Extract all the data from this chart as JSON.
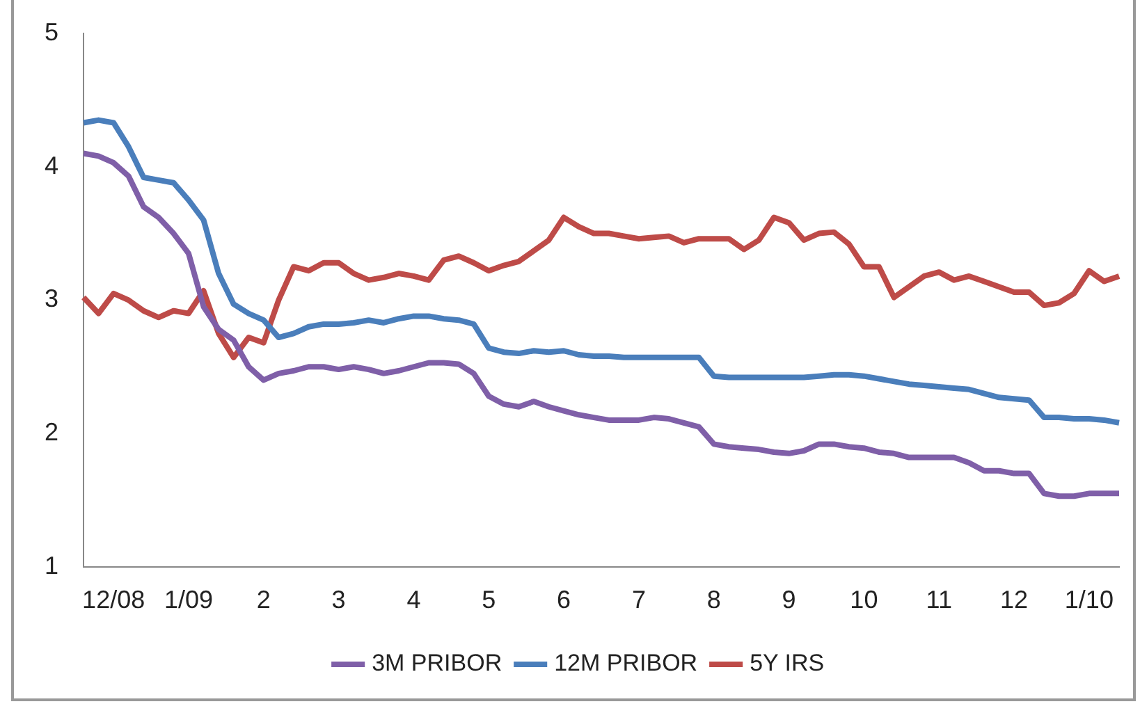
{
  "chart_data": {
    "type": "line",
    "categories": [
      null,
      null,
      "12/08",
      null,
      null,
      null,
      null,
      "1/09",
      null,
      null,
      null,
      null,
      "2",
      null,
      null,
      null,
      null,
      "3",
      null,
      null,
      null,
      null,
      "4",
      null,
      null,
      null,
      null,
      "5",
      null,
      null,
      null,
      null,
      "6",
      null,
      null,
      null,
      null,
      "7",
      null,
      null,
      null,
      null,
      "8",
      null,
      null,
      null,
      null,
      "9",
      null,
      null,
      null,
      null,
      "10",
      null,
      null,
      null,
      null,
      "11",
      null,
      null,
      null,
      null,
      "12",
      null,
      null,
      null,
      null,
      "1/10",
      null,
      null
    ],
    "series": [
      {
        "name": "3M PRIBOR",
        "color": "#7f5fa8",
        "values": [
          4.1,
          4.08,
          4.03,
          3.93,
          3.7,
          3.62,
          3.5,
          3.35,
          2.95,
          2.78,
          2.7,
          2.5,
          2.4,
          2.45,
          2.47,
          2.5,
          2.5,
          2.48,
          2.5,
          2.48,
          2.45,
          2.47,
          2.5,
          2.53,
          2.53,
          2.52,
          2.45,
          2.28,
          2.22,
          2.2,
          2.24,
          2.2,
          2.17,
          2.14,
          2.12,
          2.1,
          2.1,
          2.1,
          2.12,
          2.11,
          2.08,
          2.05,
          1.92,
          1.9,
          1.89,
          1.88,
          1.86,
          1.85,
          1.87,
          1.92,
          1.92,
          1.9,
          1.89,
          1.86,
          1.85,
          1.82,
          1.82,
          1.82,
          1.82,
          1.78,
          1.72,
          1.72,
          1.7,
          1.7,
          1.55,
          1.53,
          1.53,
          1.55,
          1.55,
          1.55
        ]
      },
      {
        "name": "12M PRIBOR",
        "color": "#4a7ebb",
        "values": [
          4.33,
          4.35,
          4.33,
          4.15,
          3.92,
          3.9,
          3.88,
          3.75,
          3.6,
          3.2,
          2.97,
          2.9,
          2.85,
          2.72,
          2.75,
          2.8,
          2.82,
          2.82,
          2.83,
          2.85,
          2.83,
          2.86,
          2.88,
          2.88,
          2.86,
          2.85,
          2.82,
          2.64,
          2.61,
          2.6,
          2.62,
          2.61,
          2.62,
          2.59,
          2.58,
          2.58,
          2.57,
          2.57,
          2.57,
          2.57,
          2.57,
          2.57,
          2.43,
          2.42,
          2.42,
          2.42,
          2.42,
          2.42,
          2.42,
          2.43,
          2.44,
          2.44,
          2.43,
          2.41,
          2.39,
          2.37,
          2.36,
          2.35,
          2.34,
          2.33,
          2.3,
          2.27,
          2.26,
          2.25,
          2.12,
          2.12,
          2.11,
          2.11,
          2.1,
          2.08
        ]
      },
      {
        "name": "5Y IRS",
        "color": "#be4b48",
        "values": [
          3.02,
          2.9,
          3.05,
          3,
          2.92,
          2.87,
          2.92,
          2.9,
          3.07,
          2.75,
          2.57,
          2.72,
          2.68,
          3,
          3.25,
          3.22,
          3.28,
          3.28,
          3.2,
          3.15,
          3.17,
          3.2,
          3.18,
          3.15,
          3.3,
          3.33,
          3.28,
          3.22,
          3.26,
          3.29,
          3.37,
          3.45,
          3.62,
          3.55,
          3.5,
          3.5,
          3.48,
          3.46,
          3.47,
          3.48,
          3.43,
          3.46,
          3.46,
          3.46,
          3.38,
          3.45,
          3.62,
          3.58,
          3.45,
          3.5,
          3.51,
          3.42,
          3.25,
          3.25,
          3.02,
          3.1,
          3.18,
          3.21,
          3.15,
          3.18,
          3.14,
          3.1,
          3.06,
          3.06,
          2.96,
          2.98,
          3.05,
          3.22,
          3.14,
          3.18
        ]
      }
    ],
    "ylim": [
      1,
      5
    ],
    "yticks": [
      1,
      2,
      3,
      4,
      5
    ],
    "grid": false,
    "legend": "bottom",
    "marker": "none",
    "line_style": "solid"
  }
}
